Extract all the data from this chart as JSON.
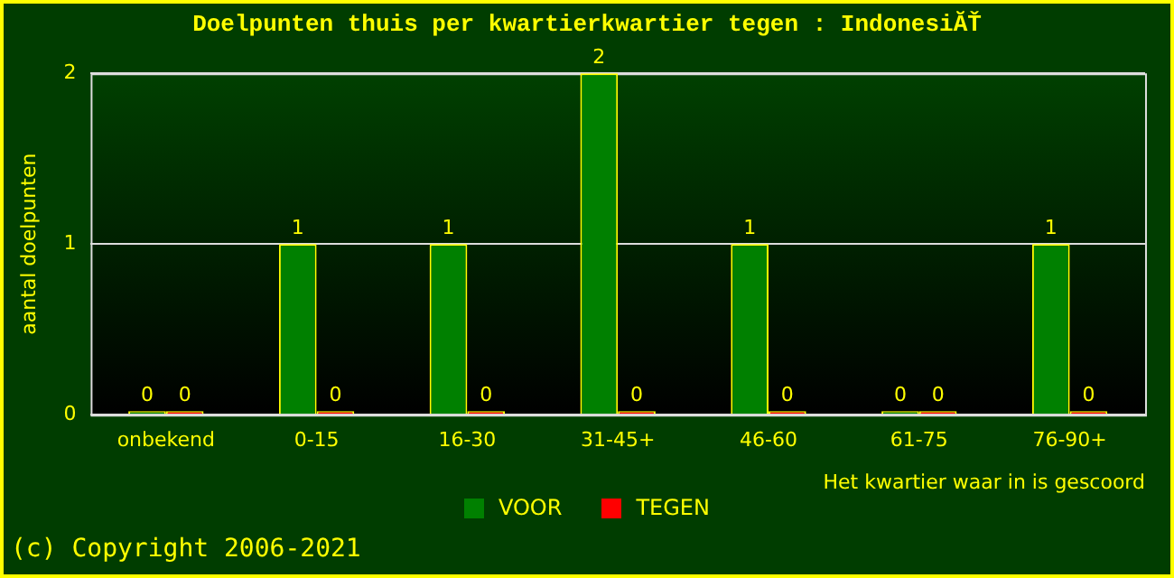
{
  "chart_data": {
    "type": "bar",
    "title": "Doelpunten thuis per kwartierkwartier tegen : IndonesiĂŤ",
    "ylabel": "aantal doelpunten",
    "xlabel": "Het kwartier waar in is gescoord",
    "categories": [
      "onbekend",
      "0-15",
      "16-30",
      "31-45+",
      "46-60",
      "61-75",
      "76-90+"
    ],
    "series": [
      {
        "name": "VOOR",
        "color": "#008000",
        "values": [
          0,
          1,
          1,
          2,
          1,
          0,
          1
        ]
      },
      {
        "name": "TEGEN",
        "color": "#ff0000",
        "values": [
          0,
          0,
          0,
          0,
          0,
          0,
          0
        ]
      }
    ],
    "ylim": [
      0,
      2
    ],
    "yticks": [
      0,
      1,
      2
    ],
    "grid": "y",
    "legend": "bottom",
    "data_labels": true,
    "annotations": [
      "(c) Copyright 2006-2021"
    ]
  }
}
